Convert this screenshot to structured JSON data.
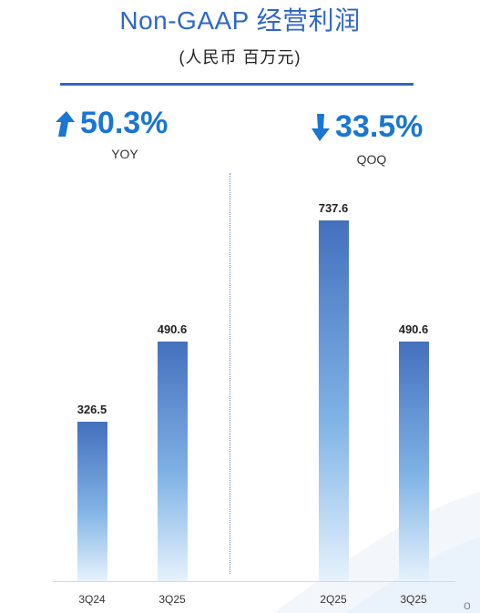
{
  "title": "Non-GAAP  经营利润",
  "subtitle": "(人民币 百万元)",
  "kpis": {
    "yoy": {
      "value": "50.3%",
      "label": "YOY",
      "direction": "up"
    },
    "qoq": {
      "value": "33.5%",
      "label": "QOQ",
      "direction": "down"
    }
  },
  "colors": {
    "accent": "#2f67c4",
    "kpi": "#1976d2",
    "bar_top": "#4470bd",
    "bar_bottom": "#e6f2fc"
  },
  "chart_data": {
    "type": "bar",
    "title": "Non-GAAP  经营利润",
    "subtitle": "(人民币 百万元)",
    "categories": [
      "3Q24",
      "3Q25",
      "2Q25",
      "3Q25"
    ],
    "values": [
      326.5,
      490.6,
      737.6,
      490.6
    ],
    "value_labels": [
      "326.5",
      "490.6",
      "737.6",
      "490.6"
    ],
    "groups": [
      {
        "label": "YOY",
        "change": "50.3%",
        "direction": "up",
        "indices": [
          0,
          1
        ]
      },
      {
        "label": "QOQ",
        "change": "33.5%",
        "direction": "down",
        "indices": [
          2,
          3
        ]
      }
    ],
    "ylim": [
      0,
      737.6
    ],
    "grid": false,
    "legend": "none"
  },
  "corner_mark": "o"
}
